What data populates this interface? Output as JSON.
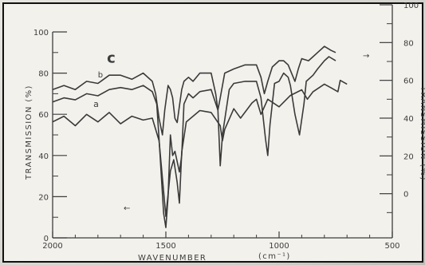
{
  "chart_data": {
    "type": "line",
    "xlabel": "WAVENUMBER",
    "xunit": "(cm⁻¹)",
    "ylabel_left": "TRANSMISSION (%)",
    "ylabel_right": "TRANSMISSION (%)",
    "xlim": [
      2000,
      500
    ],
    "ylim_left": [
      0,
      100
    ],
    "ylim_right": [
      -20,
      100
    ],
    "x_ticks": [
      {
        "value": 2000,
        "label": "2000"
      },
      {
        "value": 1500,
        "label": "1500"
      },
      {
        "value": 1000,
        "label": "1000"
      },
      {
        "value": 500,
        "label": "500"
      }
    ],
    "y_ticks_left": [
      {
        "value": 0,
        "label": "0"
      },
      {
        "value": 20,
        "label": "20"
      },
      {
        "value": 40,
        "label": "40"
      },
      {
        "value": 60,
        "label": "60"
      },
      {
        "value": 80,
        "label": "80"
      },
      {
        "value": 100,
        "label": "100"
      }
    ],
    "y_ticks_right": [
      {
        "value": 0,
        "label": "0"
      },
      {
        "value": 20,
        "label": "20"
      },
      {
        "value": 40,
        "label": "40"
      },
      {
        "value": 60,
        "label": "60"
      },
      {
        "value": 80,
        "label": "80"
      },
      {
        "value": 100,
        "label": "100"
      }
    ],
    "series": [
      {
        "name": "a",
        "axis": "right",
        "points": [
          [
            2000,
            38
          ],
          [
            1950,
            41
          ],
          [
            1900,
            36
          ],
          [
            1850,
            42
          ],
          [
            1800,
            38
          ],
          [
            1750,
            43
          ],
          [
            1700,
            37
          ],
          [
            1650,
            41
          ],
          [
            1600,
            39
          ],
          [
            1560,
            40
          ],
          [
            1530,
            28
          ],
          [
            1500,
            -12
          ],
          [
            1480,
            12
          ],
          [
            1465,
            18
          ],
          [
            1450,
            6
          ],
          [
            1440,
            -5
          ],
          [
            1430,
            22
          ],
          [
            1410,
            38
          ],
          [
            1380,
            41
          ],
          [
            1350,
            44
          ],
          [
            1300,
            43
          ],
          [
            1260,
            36
          ],
          [
            1250,
            28
          ],
          [
            1240,
            34
          ],
          [
            1200,
            45
          ],
          [
            1170,
            40
          ],
          [
            1120,
            48
          ],
          [
            1100,
            50
          ],
          [
            1080,
            42
          ],
          [
            1050,
            50
          ],
          [
            1000,
            46
          ],
          [
            950,
            52
          ],
          [
            900,
            55
          ],
          [
            875,
            50
          ],
          [
            850,
            54
          ],
          [
            800,
            58
          ],
          [
            770,
            56
          ],
          [
            740,
            54
          ],
          [
            730,
            60
          ],
          [
            700,
            58
          ]
        ]
      },
      {
        "name": "b",
        "axis": "left",
        "points": [
          [
            2000,
            66
          ],
          [
            1950,
            68
          ],
          [
            1900,
            67
          ],
          [
            1850,
            70
          ],
          [
            1800,
            69
          ],
          [
            1750,
            72
          ],
          [
            1700,
            73
          ],
          [
            1650,
            72
          ],
          [
            1600,
            74
          ],
          [
            1560,
            71
          ],
          [
            1540,
            65
          ],
          [
            1530,
            48
          ],
          [
            1510,
            12
          ],
          [
            1500,
            5
          ],
          [
            1490,
            20
          ],
          [
            1480,
            50
          ],
          [
            1470,
            40
          ],
          [
            1460,
            42
          ],
          [
            1440,
            32
          ],
          [
            1430,
            40
          ],
          [
            1420,
            65
          ],
          [
            1400,
            70
          ],
          [
            1380,
            68
          ],
          [
            1350,
            71
          ],
          [
            1300,
            72
          ],
          [
            1270,
            62
          ],
          [
            1260,
            35
          ],
          [
            1250,
            50
          ],
          [
            1220,
            72
          ],
          [
            1200,
            75
          ],
          [
            1150,
            76
          ],
          [
            1100,
            76
          ],
          [
            1080,
            68
          ],
          [
            1060,
            48
          ],
          [
            1050,
            40
          ],
          [
            1040,
            55
          ],
          [
            1020,
            75
          ],
          [
            1000,
            76
          ],
          [
            980,
            80
          ],
          [
            960,
            78
          ],
          [
            950,
            74
          ],
          [
            930,
            60
          ],
          [
            910,
            50
          ],
          [
            890,
            65
          ],
          [
            880,
            76
          ],
          [
            850,
            79
          ],
          [
            830,
            82
          ],
          [
            800,
            86
          ],
          [
            780,
            88
          ],
          [
            750,
            86
          ]
        ]
      },
      {
        "name": "c",
        "axis": "left",
        "points": [
          [
            2000,
            72
          ],
          [
            1950,
            74
          ],
          [
            1900,
            72
          ],
          [
            1850,
            76
          ],
          [
            1800,
            75
          ],
          [
            1750,
            79
          ],
          [
            1700,
            79
          ],
          [
            1650,
            77
          ],
          [
            1600,
            80
          ],
          [
            1560,
            76
          ],
          [
            1545,
            70
          ],
          [
            1530,
            58
          ],
          [
            1515,
            50
          ],
          [
            1505,
            62
          ],
          [
            1490,
            74
          ],
          [
            1480,
            72
          ],
          [
            1470,
            68
          ],
          [
            1460,
            58
          ],
          [
            1450,
            56
          ],
          [
            1440,
            64
          ],
          [
            1430,
            72
          ],
          [
            1420,
            76
          ],
          [
            1400,
            78
          ],
          [
            1380,
            76
          ],
          [
            1350,
            80
          ],
          [
            1300,
            80
          ],
          [
            1280,
            70
          ],
          [
            1270,
            62
          ],
          [
            1260,
            68
          ],
          [
            1240,
            80
          ],
          [
            1200,
            82
          ],
          [
            1150,
            84
          ],
          [
            1100,
            84
          ],
          [
            1080,
            78
          ],
          [
            1065,
            70
          ],
          [
            1050,
            76
          ],
          [
            1030,
            83
          ],
          [
            1000,
            86
          ],
          [
            980,
            86
          ],
          [
            960,
            84
          ],
          [
            945,
            80
          ],
          [
            930,
            76
          ],
          [
            915,
            82
          ],
          [
            900,
            87
          ],
          [
            870,
            86
          ],
          [
            850,
            88
          ],
          [
            830,
            90
          ],
          [
            800,
            93
          ],
          [
            770,
            91
          ],
          [
            750,
            90
          ]
        ]
      }
    ],
    "annotations": [
      {
        "text": "→",
        "meaning": "arrow pointing to right-hand axis"
      },
      {
        "text": "←",
        "meaning": "arrow pointing to left-hand axis"
      }
    ]
  }
}
